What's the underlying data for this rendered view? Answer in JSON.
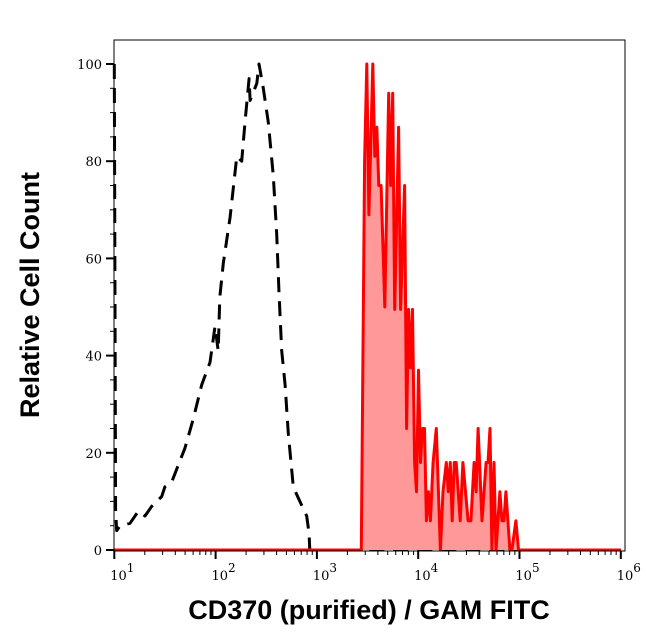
{
  "chart_data": {
    "type": "area",
    "title": "",
    "xlabel": "CD370 (purified) / GAM FITC",
    "ylabel": "Relative Cell Count",
    "xscale": "log",
    "xlim": [
      10,
      1000000
    ],
    "ylim": [
      0,
      100
    ],
    "xticks": [
      {
        "value": 10,
        "base": "10",
        "exp": "1"
      },
      {
        "value": 100,
        "base": "10",
        "exp": "2"
      },
      {
        "value": 1000,
        "base": "10",
        "exp": "3"
      },
      {
        "value": 10000,
        "base": "10",
        "exp": "4"
      },
      {
        "value": 100000,
        "base": "10",
        "exp": "5"
      },
      {
        "value": 1000000,
        "base": "10",
        "exp": "6"
      }
    ],
    "yticks": [
      "0",
      "20",
      "40",
      "60",
      "80",
      "100"
    ],
    "grid": false,
    "legend": "none",
    "series": [
      {
        "style": "dashed",
        "color": "#000000",
        "fill": "none",
        "x": [
          10,
          10.3,
          10.56,
          11.4,
          14.3,
          17.3,
          20.1,
          23.4,
          29.4,
          31.6,
          36.9,
          49.9,
          60.2,
          72.9,
          88.1,
          98.6,
          106,
          110,
          119,
          139,
          162,
          181,
          195,
          214,
          219,
          255,
          268,
          296,
          331,
          371,
          401,
          423,
          449,
          485,
          522,
          585,
          655,
          793,
          836,
          850,
          1000000
        ],
        "y": [
          100,
          8,
          4,
          5,
          5.5,
          8,
          7,
          9,
          11,
          13,
          14,
          21,
          27,
          34,
          38.6,
          46,
          41,
          52,
          59,
          68.5,
          81,
          80,
          88,
          97,
          92.5,
          96,
          100,
          95,
          88,
          77,
          65,
          53,
          41,
          34,
          24,
          13,
          10.7,
          7,
          3.5,
          0,
          0
        ]
      },
      {
        "style": "solid",
        "color": "#ff0000",
        "fill": "#ff9999",
        "x": [
          10,
          2700,
          2742,
          2958,
          3112,
          3258,
          3565,
          3731,
          3902,
          4083,
          4305,
          4677,
          5117,
          5346,
          5598,
          5861,
          6412,
          6699,
          7345,
          7674,
          8035,
          8414,
          8790,
          9204,
          9616,
          10070,
          10540,
          11020,
          11530,
          12050,
          12620,
          13210,
          14030,
          15100,
          16560,
          17580,
          18920,
          19820,
          20750,
          21680,
          22700,
          23710,
          26000,
          27610,
          31120,
          33110,
          35650,
          37330,
          38990,
          42660,
          46770,
          48870,
          51170,
          53460,
          55980,
          58610,
          64120,
          66990,
          70150,
          73450,
          80350,
          84140,
          92040,
          97720,
          1000000
        ],
        "y": [
          0,
          0,
          0,
          80,
          100,
          69,
          100,
          81,
          87,
          75,
          75,
          50,
          94,
          75,
          94,
          49.5,
          87,
          49.5,
          75,
          25,
          49.5,
          37.5,
          49.5,
          18,
          12,
          37,
          18,
          25,
          25,
          6,
          12,
          6,
          18,
          25,
          0,
          12,
          18,
          12,
          18,
          6,
          18,
          18,
          6,
          18,
          6,
          6,
          18,
          12,
          25,
          6,
          18,
          18,
          25,
          0,
          18,
          0,
          12,
          6,
          6,
          12,
          0,
          0,
          6,
          0,
          0
        ]
      }
    ]
  }
}
